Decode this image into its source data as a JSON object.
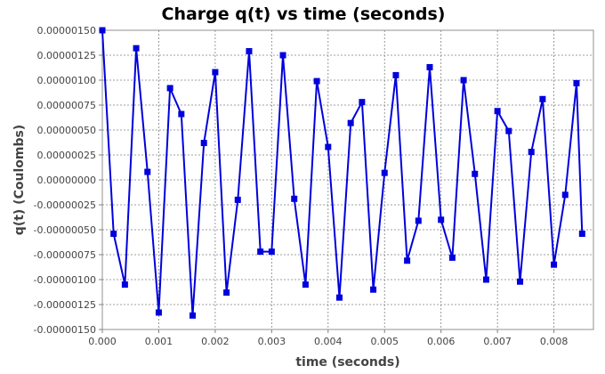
{
  "chart_data": {
    "type": "line",
    "title": "Charge q(t) vs time (seconds)",
    "xlabel": "time (seconds)",
    "ylabel": "q(t) (Coulombs)",
    "xlim": [
      0,
      0.0087
    ],
    "ylim": [
      -1.5e-06,
      1.5e-06
    ],
    "x_ticks": [
      0.0,
      0.001,
      0.002,
      0.003,
      0.004,
      0.005,
      0.006,
      0.007,
      0.008
    ],
    "x_tick_labels": [
      "0.000",
      "0.001",
      "0.002",
      "0.003",
      "0.004",
      "0.005",
      "0.006",
      "0.007",
      "0.008"
    ],
    "y_ticks": [
      1.5e-06,
      1.25e-06,
      1e-06,
      7.5e-07,
      5e-07,
      2.5e-07,
      0,
      -2.5e-07,
      -5e-07,
      -7.5e-07,
      -1e-06,
      -1.25e-06,
      -1.5e-06
    ],
    "y_tick_labels": [
      "0.00000150",
      "0.00000125",
      "0.00000100",
      "0.00000075",
      "0.00000050",
      "0.00000025",
      "0.00000000",
      "-0.00000025",
      "-0.00000050",
      "-0.00000075",
      "-0.00000100",
      "-0.00000125",
      "-0.00000150"
    ],
    "grid": true,
    "series": [
      {
        "color": "#0000dd",
        "x": [
          0.0,
          0.0002,
          0.0004,
          0.0006,
          0.0008,
          0.001,
          0.0012,
          0.0014,
          0.0016,
          0.0018,
          0.002,
          0.0022,
          0.0024,
          0.0026,
          0.0028,
          0.003,
          0.0032,
          0.0034,
          0.0036,
          0.0038,
          0.004,
          0.0042,
          0.0044,
          0.0046,
          0.0048,
          0.005,
          0.0052,
          0.0054,
          0.0056,
          0.0058,
          0.006,
          0.0062,
          0.0064,
          0.0066,
          0.0068,
          0.007,
          0.0072,
          0.0074,
          0.0076,
          0.0078,
          0.008,
          0.0082,
          0.0084,
          0.0085
        ],
        "y": [
          1.5e-06,
          -5.4e-07,
          -1.05e-06,
          1.32e-06,
          8e-08,
          -1.33e-06,
          9.2e-07,
          6.6e-07,
          -1.36e-06,
          3.7e-07,
          1.08e-06,
          -1.13e-06,
          -2e-07,
          1.29e-06,
          -7.2e-07,
          -7.2e-07,
          1.25e-06,
          -1.9e-07,
          -1.05e-06,
          9.9e-07,
          3.3e-07,
          -1.18e-06,
          5.7e-07,
          7.8e-07,
          -1.1e-06,
          7e-08,
          1.05e-06,
          -8.1e-07,
          -4.1e-07,
          1.13e-06,
          -4e-07,
          -7.8e-07,
          1e-06,
          6e-08,
          -1e-06,
          6.9e-07,
          4.9e-07,
          -1.02e-06,
          2.8e-07,
          8.1e-07,
          -8.5e-07,
          -1.5e-07,
          9.7e-07,
          -5.4e-07
        ]
      }
    ]
  }
}
